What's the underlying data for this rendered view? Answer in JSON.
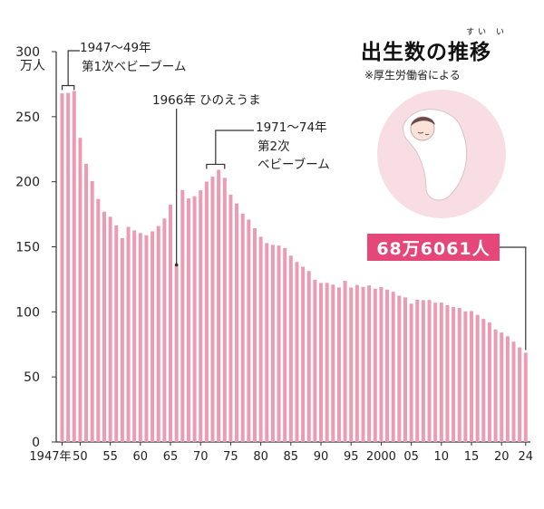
{
  "header": {
    "title": "出生数の推移",
    "ruby": "すい い",
    "source": "※厚生労働省による"
  },
  "unit_label": "万人",
  "annotations": {
    "boom1_years": "1947～49年",
    "boom1_name": "第1次ベビーブーム",
    "hinoeuma": "1966年 ひのえうま",
    "boom2_years": "1971～74年",
    "boom2_line1": "第2次",
    "boom2_line2": "ベビーブーム",
    "latest_value": "68万6061人"
  },
  "colors": {
    "bar": "#ec9bb5",
    "callout": "#e5477a",
    "circle": "#f9dde4"
  },
  "chart_data": {
    "type": "bar",
    "title": "出生数の推移",
    "ylabel": "万人",
    "ylim": [
      0,
      300
    ],
    "yticks": [
      0,
      50,
      100,
      150,
      200,
      250,
      300
    ],
    "grid": false,
    "x_tick_labels": [
      {
        "year": 1947,
        "label": "1947年"
      },
      {
        "year": 1950,
        "label": "50"
      },
      {
        "year": 1955,
        "label": "55"
      },
      {
        "year": 1960,
        "label": "60"
      },
      {
        "year": 1965,
        "label": "65"
      },
      {
        "year": 1970,
        "label": "70"
      },
      {
        "year": 1975,
        "label": "75"
      },
      {
        "year": 1980,
        "label": "80"
      },
      {
        "year": 1985,
        "label": "85"
      },
      {
        "year": 1990,
        "label": "90"
      },
      {
        "year": 1995,
        "label": "95"
      },
      {
        "year": 2000,
        "label": "2000"
      },
      {
        "year": 2005,
        "label": "05"
      },
      {
        "year": 2010,
        "label": "10"
      },
      {
        "year": 2015,
        "label": "15"
      },
      {
        "year": 2020,
        "label": "20"
      },
      {
        "year": 2024,
        "label": "24"
      }
    ],
    "years": [
      1947,
      1948,
      1949,
      1950,
      1951,
      1952,
      1953,
      1954,
      1955,
      1956,
      1957,
      1958,
      1959,
      1960,
      1961,
      1962,
      1963,
      1964,
      1965,
      1966,
      1967,
      1968,
      1969,
      1970,
      1971,
      1972,
      1973,
      1974,
      1975,
      1976,
      1977,
      1978,
      1979,
      1980,
      1981,
      1982,
      1983,
      1984,
      1985,
      1986,
      1987,
      1988,
      1989,
      1990,
      1991,
      1992,
      1993,
      1994,
      1995,
      1996,
      1997,
      1998,
      1999,
      2000,
      2001,
      2002,
      2003,
      2004,
      2005,
      2006,
      2007,
      2008,
      2009,
      2010,
      2011,
      2012,
      2013,
      2014,
      2015,
      2016,
      2017,
      2018,
      2019,
      2020,
      2021,
      2022,
      2023,
      2024
    ],
    "values": [
      267.9,
      268.2,
      269.7,
      233.8,
      213.8,
      200.5,
      186.8,
      177.0,
      173.1,
      166.5,
      156.7,
      165.3,
      162.6,
      160.6,
      158.9,
      161.9,
      166.0,
      171.7,
      182.4,
      136.1,
      193.6,
      187.2,
      188.9,
      193.4,
      200.1,
      203.9,
      209.2,
      203.0,
      190.1,
      183.3,
      175.5,
      170.9,
      164.3,
      157.7,
      152.9,
      151.5,
      150.9,
      149.0,
      143.2,
      138.3,
      134.7,
      131.4,
      124.7,
      122.2,
      122.3,
      120.9,
      118.8,
      123.8,
      118.7,
      120.7,
      119.2,
      120.3,
      117.8,
      119.1,
      117.1,
      115.4,
      112.4,
      111.1,
      106.3,
      109.3,
      109.0,
      109.1,
      107.0,
      107.1,
      105.1,
      103.7,
      103.0,
      100.4,
      100.6,
      97.7,
      94.6,
      91.8,
      86.5,
      84.1,
      81.2,
      77.1,
      72.7,
      68.6
    ]
  }
}
